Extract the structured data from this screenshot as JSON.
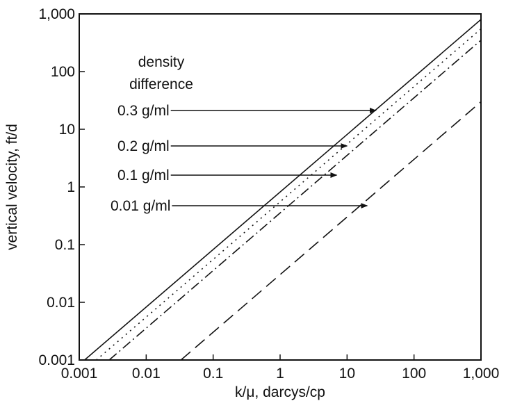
{
  "chart_data": {
    "type": "line",
    "xscale": "log",
    "yscale": "log",
    "xlim": [
      0.001,
      1000
    ],
    "ylim": [
      0.001,
      1000
    ],
    "xlabel": "k/μ, darcys/cp",
    "ylabel": "vertical velocity, ft/d",
    "x_ticks": [
      0.001,
      0.01,
      0.1,
      1,
      10,
      100,
      1000
    ],
    "x_tick_labels": [
      "0.001",
      "0.01",
      "0.1",
      "1",
      "10",
      "100",
      "1,000"
    ],
    "y_ticks": [
      0.001,
      0.01,
      0.1,
      1,
      10,
      100,
      1000
    ],
    "y_tick_labels": [
      "0.001",
      "0.01",
      "0.1",
      "1",
      "10",
      "100",
      "1,000"
    ],
    "grid": false,
    "legend_title": [
      "density",
      "difference"
    ],
    "series": [
      {
        "name": "0.3 g/ml",
        "style": "solid",
        "x": [
          0.0012,
          1000
        ],
        "y": [
          0.001,
          800
        ]
      },
      {
        "name": "0.2 g/ml",
        "style": "dotted",
        "x": [
          0.0018,
          1000
        ],
        "y": [
          0.001,
          550
        ]
      },
      {
        "name": "0.1 g/ml",
        "style": "dashdot",
        "x": [
          0.0028,
          1000
        ],
        "y": [
          0.001,
          350
        ]
      },
      {
        "name": "0.01 g/ml",
        "style": "dashed",
        "x": [
          0.033,
          1000
        ],
        "y": [
          0.001,
          30
        ]
      }
    ],
    "annotations": [
      {
        "text": "0.3 g/ml",
        "arrow_to": {
          "x": 27,
          "y": 22
        }
      },
      {
        "text": "0.2 g/ml",
        "arrow_to": {
          "x": 10,
          "y": 6.3
        }
      },
      {
        "text": "0.1 g/ml",
        "arrow_to": {
          "x": 7,
          "y": 1.7
        }
      },
      {
        "text": "0.01 g/ml",
        "arrow_to": {
          "x": 20,
          "y": 0.55
        }
      }
    ],
    "colors": {
      "line": "#111111",
      "frame": "#111111"
    }
  }
}
